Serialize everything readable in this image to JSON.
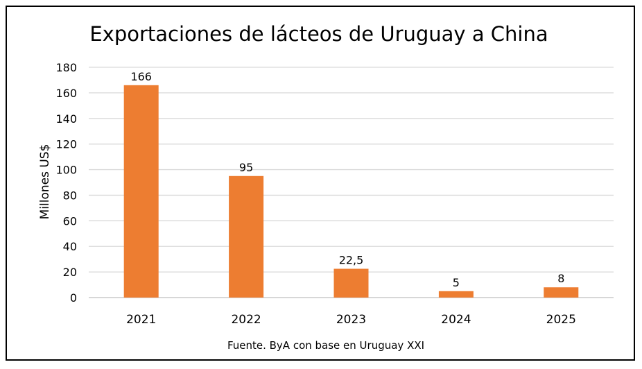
{
  "chart_data": {
    "type": "bar",
    "title": "Exportaciones de lácteos de Uruguay a China",
    "xlabel": "",
    "ylabel": "Millones US$",
    "categories": [
      "2021",
      "2022",
      "2023",
      "2024",
      "2025"
    ],
    "values": [
      166,
      95,
      22.5,
      5,
      8
    ],
    "data_labels": [
      "166",
      "95",
      "22,5",
      "5",
      "8"
    ],
    "ylim": [
      0,
      180
    ],
    "yticks": [
      0,
      20,
      40,
      60,
      80,
      100,
      120,
      140,
      160,
      180
    ],
    "grid": true,
    "legend": "none",
    "source": "Fuente. ByA con base en Uruguay XXI",
    "colors": {
      "bar": "#ED7D31",
      "grid": "#D9D9D9"
    }
  }
}
